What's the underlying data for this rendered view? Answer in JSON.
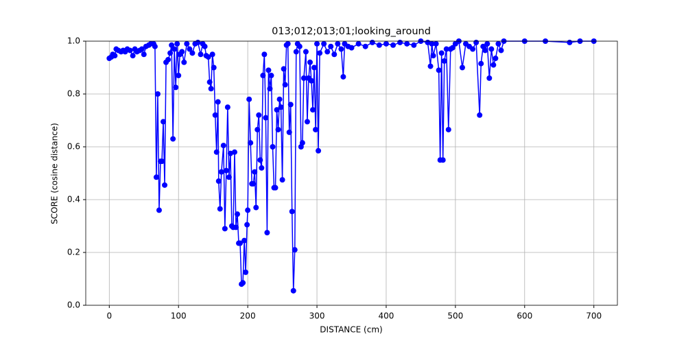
{
  "chart_data": {
    "type": "line",
    "title": "013;012;013;01;looking_around",
    "x_label": "DISTANCE (cm)",
    "y_label": "SCORE (cosine distance)",
    "color": "#0000ff",
    "marker": "circle",
    "grid": true,
    "xlim": [
      -34,
      734
    ],
    "ylim": [
      0,
      1
    ],
    "xticks": [
      0,
      100,
      200,
      300,
      400,
      500,
      600,
      700
    ],
    "yticks": [
      {
        "value": 0,
        "label": "0.0"
      },
      0.2,
      0.4,
      0.6,
      0.8,
      {
        "value": 1,
        "label": "1.0"
      }
    ],
    "x": [
      0,
      3,
      5,
      8,
      10,
      13,
      17,
      20,
      23,
      26,
      30,
      34,
      37,
      40,
      44,
      47,
      50,
      53,
      57,
      60,
      64,
      66,
      68,
      70,
      72,
      74,
      76,
      78,
      80,
      82,
      85,
      88,
      90,
      92,
      94,
      96,
      98,
      100,
      102,
      105,
      108,
      112,
      116,
      120,
      124,
      128,
      132,
      135,
      138,
      140,
      143,
      145,
      147,
      149,
      151,
      153,
      155,
      157,
      158,
      160,
      162,
      165,
      167,
      169,
      171,
      173,
      175,
      177,
      179,
      181,
      183,
      185,
      187,
      189,
      191,
      193,
      195,
      197,
      199,
      200,
      202,
      204,
      206,
      208,
      210,
      212,
      214,
      216,
      218,
      220,
      222,
      224,
      226,
      228,
      230,
      232,
      234,
      236,
      238,
      240,
      242,
      244,
      246,
      248,
      250,
      252,
      254,
      256,
      258,
      260,
      262,
      264,
      266,
      268,
      270,
      272,
      275,
      277,
      279,
      281,
      284,
      286,
      288,
      290,
      292,
      294,
      296,
      298,
      300,
      302,
      304,
      310,
      315,
      320,
      325,
      330,
      335,
      338,
      340,
      345,
      350,
      360,
      370,
      380,
      390,
      400,
      410,
      420,
      430,
      440,
      450,
      460,
      464,
      466,
      468,
      472,
      476,
      478,
      480,
      482,
      484,
      487,
      490,
      493,
      496,
      500,
      505,
      510,
      515,
      520,
      525,
      530,
      535,
      537,
      540,
      543,
      546,
      549,
      552,
      555,
      558,
      562,
      566,
      570,
      600,
      630,
      665,
      680,
      700
    ],
    "values": [
      0.935,
      0.94,
      0.95,
      0.945,
      0.97,
      0.965,
      0.96,
      0.965,
      0.96,
      0.97,
      0.965,
      0.945,
      0.97,
      0.96,
      0.965,
      0.97,
      0.95,
      0.98,
      0.985,
      0.99,
      0.99,
      0.98,
      0.485,
      0.8,
      0.36,
      0.545,
      0.545,
      0.695,
      0.455,
      0.92,
      0.93,
      0.955,
      0.985,
      0.63,
      0.97,
      0.825,
      0.99,
      0.87,
      0.95,
      0.96,
      0.92,
      0.99,
      0.97,
      0.955,
      0.99,
      0.995,
      0.95,
      0.99,
      0.98,
      0.945,
      0.94,
      0.845,
      0.82,
      0.95,
      0.9,
      0.72,
      0.58,
      0.77,
      0.47,
      0.365,
      0.505,
      0.605,
      0.29,
      0.51,
      0.75,
      0.485,
      0.575,
      0.3,
      0.295,
      0.58,
      0.295,
      0.345,
      0.235,
      0.235,
      0.08,
      0.085,
      0.245,
      0.125,
      0.305,
      0.36,
      0.78,
      0.615,
      0.46,
      0.46,
      0.505,
      0.37,
      0.665,
      0.72,
      0.55,
      0.52,
      0.87,
      0.95,
      0.71,
      0.275,
      0.89,
      0.82,
      0.87,
      0.6,
      0.445,
      0.445,
      0.74,
      0.665,
      0.78,
      0.75,
      0.475,
      0.895,
      0.835,
      0.985,
      0.99,
      0.655,
      0.76,
      0.355,
      0.055,
      0.21,
      0.96,
      0.99,
      0.98,
      0.6,
      0.615,
      0.86,
      0.96,
      0.695,
      0.86,
      0.92,
      0.85,
      0.74,
      0.9,
      0.665,
      0.99,
      0.585,
      0.955,
      0.99,
      0.96,
      0.98,
      0.95,
      0.99,
      0.97,
      0.865,
      0.99,
      0.98,
      0.975,
      0.99,
      0.98,
      0.995,
      0.985,
      0.99,
      0.985,
      0.995,
      0.99,
      0.985,
      1.0,
      0.995,
      0.905,
      0.99,
      0.945,
      0.99,
      0.89,
      0.55,
      0.955,
      0.55,
      0.925,
      0.97,
      0.665,
      0.97,
      0.975,
      0.99,
      1.0,
      0.9,
      0.99,
      0.98,
      0.97,
      0.995,
      0.72,
      0.915,
      0.98,
      0.965,
      0.99,
      0.86,
      0.97,
      0.91,
      0.935,
      0.99,
      0.965,
      1.0,
      1.0,
      1.0,
      0.995,
      1.0,
      1.0
    ]
  }
}
